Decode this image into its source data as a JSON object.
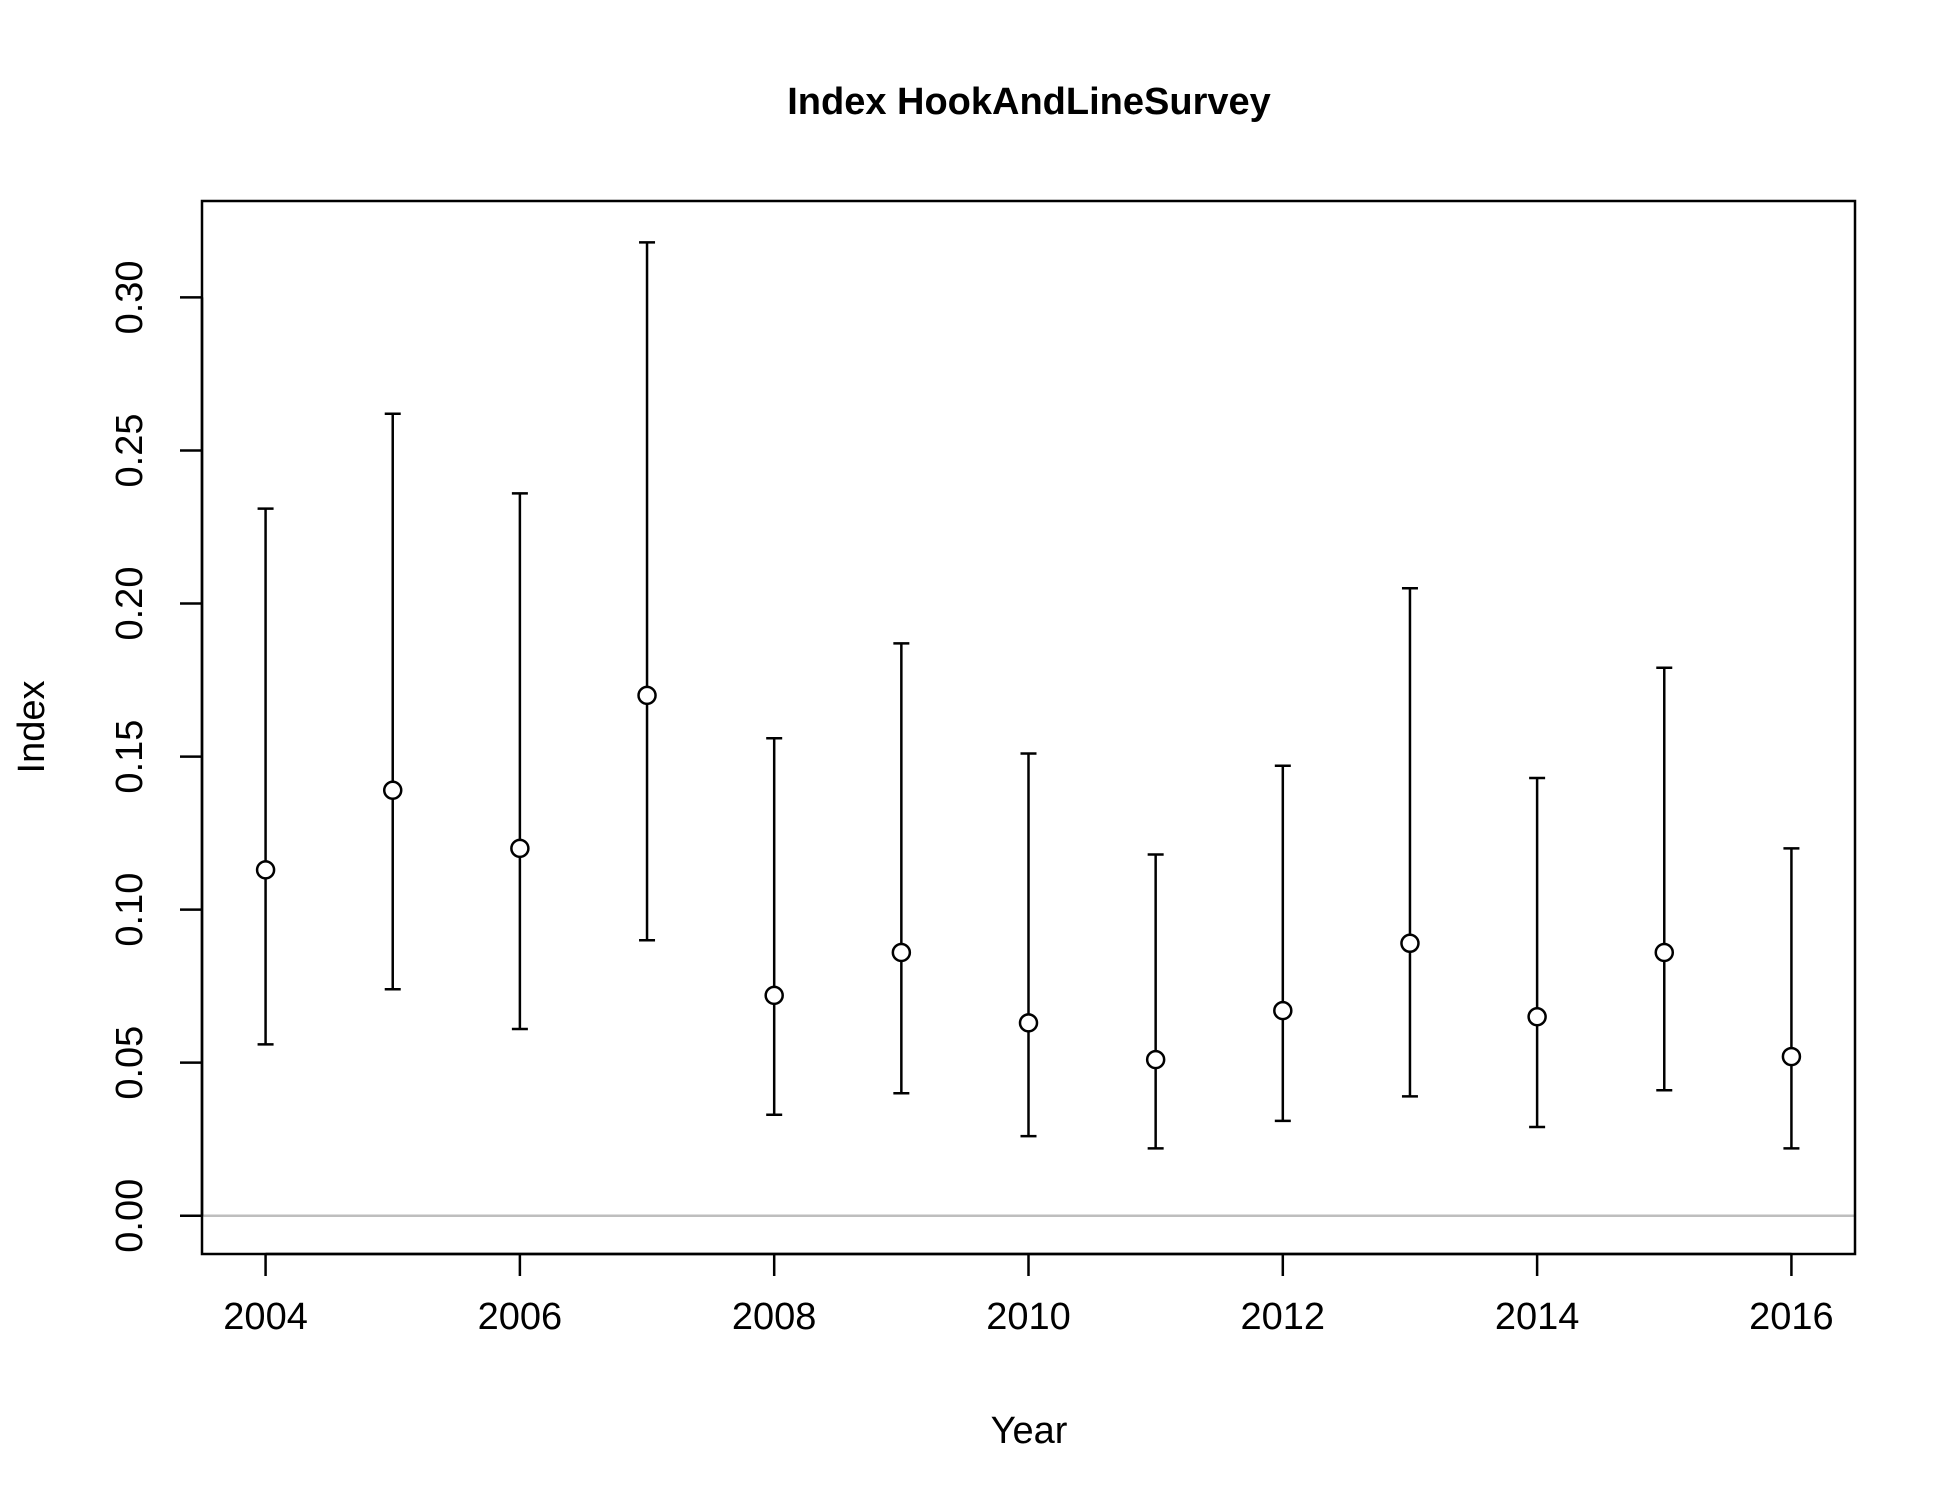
{
  "chart_data": {
    "type": "scatter",
    "title": "Index HookAndLineSurvey",
    "xlabel": "Year",
    "ylabel": "Index",
    "xlim": [
      2003.5,
      2016.5
    ],
    "ylim": [
      -0.0125,
      0.3315
    ],
    "x_ticks": [
      2004,
      2006,
      2008,
      2010,
      2012,
      2014,
      2016
    ],
    "y_ticks": [
      0.0,
      0.05,
      0.1,
      0.15,
      0.2,
      0.25,
      0.3
    ],
    "y_tick_labels": [
      "0.00",
      "0.05",
      "0.10",
      "0.15",
      "0.20",
      "0.25",
      "0.30"
    ],
    "reference_line": {
      "y": 0.0,
      "color": "#bebebe"
    },
    "grid": false,
    "marker": "open-circle",
    "series": [
      {
        "points": [
          {
            "x": 2004,
            "y": 0.113,
            "lower": 0.056,
            "upper": 0.231
          },
          {
            "x": 2005,
            "y": 0.139,
            "lower": 0.074,
            "upper": 0.262
          },
          {
            "x": 2006,
            "y": 0.12,
            "lower": 0.061,
            "upper": 0.236
          },
          {
            "x": 2007,
            "y": 0.17,
            "lower": 0.09,
            "upper": 0.318
          },
          {
            "x": 2008,
            "y": 0.072,
            "lower": 0.033,
            "upper": 0.156
          },
          {
            "x": 2009,
            "y": 0.086,
            "lower": 0.04,
            "upper": 0.187
          },
          {
            "x": 2010,
            "y": 0.063,
            "lower": 0.026,
            "upper": 0.151
          },
          {
            "x": 2011,
            "y": 0.051,
            "lower": 0.022,
            "upper": 0.118
          },
          {
            "x": 2012,
            "y": 0.067,
            "lower": 0.031,
            "upper": 0.147
          },
          {
            "x": 2013,
            "y": 0.089,
            "lower": 0.039,
            "upper": 0.205
          },
          {
            "x": 2014,
            "y": 0.065,
            "lower": 0.029,
            "upper": 0.143
          },
          {
            "x": 2015,
            "y": 0.086,
            "lower": 0.041,
            "upper": 0.179
          },
          {
            "x": 2016,
            "y": 0.052,
            "lower": 0.022,
            "upper": 0.12
          }
        ]
      }
    ]
  }
}
